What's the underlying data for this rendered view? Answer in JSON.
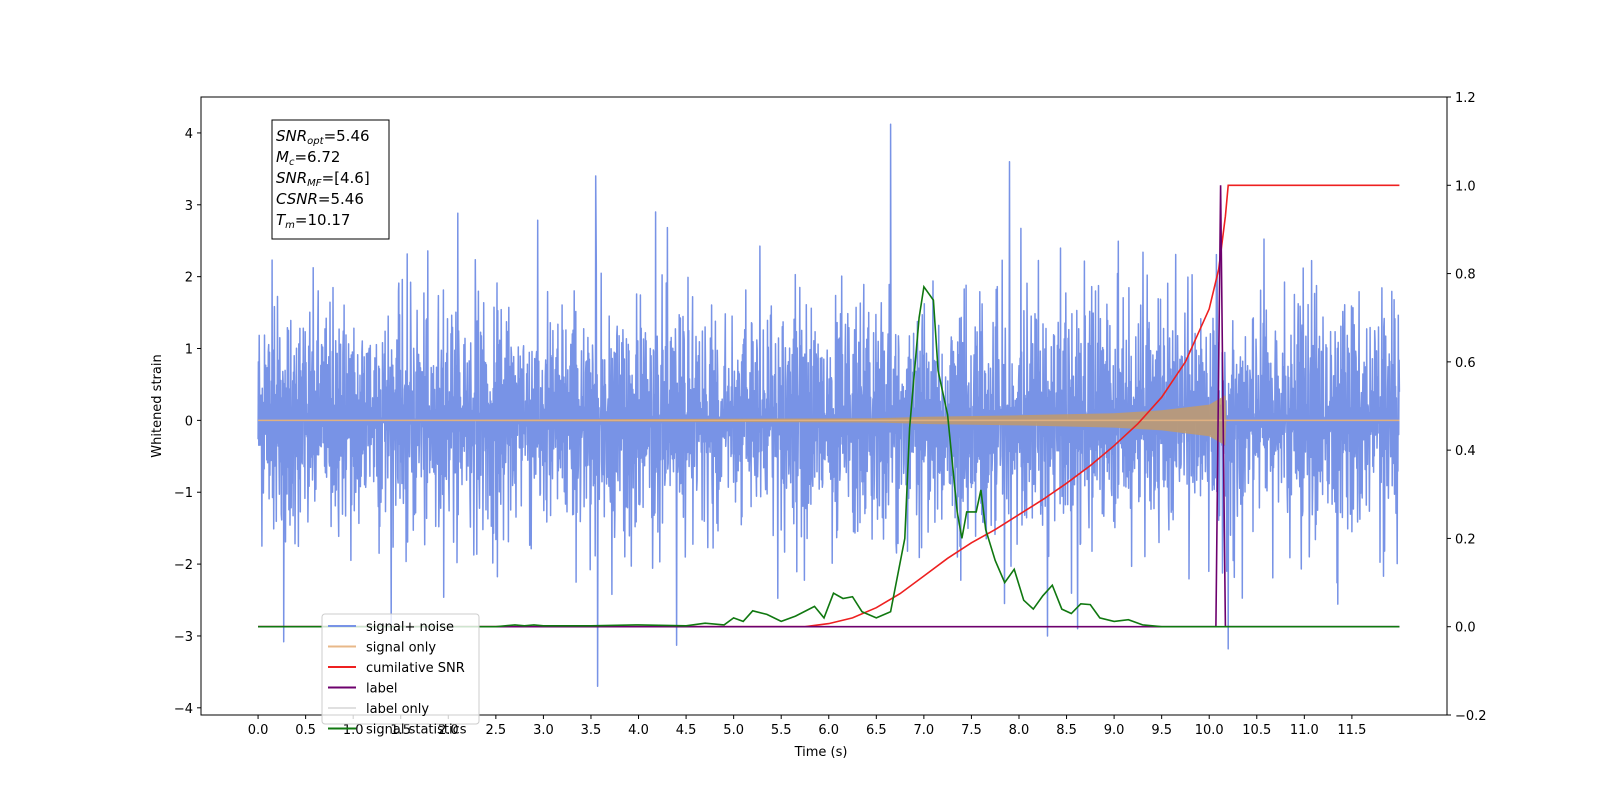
{
  "chart_data": {
    "type": "line",
    "xlabel": "Time (s)",
    "ylabel": "Whitened strain",
    "xlim": [
      -0.6,
      12.5
    ],
    "ylim": [
      -4.1,
      4.5
    ],
    "y2lim": [
      -0.2,
      1.2
    ],
    "x_ticks": [
      "0.0",
      "0.5",
      "1.0",
      "1.5",
      "2.0",
      "2.5",
      "3.0",
      "3.5",
      "4.0",
      "4.5",
      "5.0",
      "5.5",
      "6.0",
      "6.5",
      "7.0",
      "7.5",
      "8.0",
      "8.5",
      "9.0",
      "9.5",
      "10.0",
      "10.5",
      "11.0",
      "11.5"
    ],
    "y_ticks": [
      "4",
      "3",
      "2",
      "1",
      "0",
      "−1",
      "−2",
      "−3",
      "−4"
    ],
    "y2_ticks": [
      "1.2",
      "1.0",
      "0.8",
      "0.6",
      "0.4",
      "0.2",
      "0.0",
      "−0.2"
    ],
    "annotation": {
      "lines": [
        {
          "base": "SNR",
          "sub": "opt",
          "rest": "=5.46"
        },
        {
          "base": "M",
          "sub": "c",
          "rest": "=6.72"
        },
        {
          "base": "SNR",
          "sub": "MF",
          "rest": "=[4.6]"
        },
        {
          "base": "CSNR",
          "sub": "",
          "rest": "=5.46"
        },
        {
          "base": "T",
          "sub": "m",
          "rest": "=10.17"
        }
      ]
    },
    "series": [
      {
        "name": "signal+ noise",
        "color": "#7893e6",
        "axis": "left",
        "x_range": [
          0.0,
          12.0
        ],
        "typical_amplitude": 1.6,
        "spikes": [
          {
            "x": 0.27,
            "y": -3.08
          },
          {
            "x": 3.55,
            "y": 3.4
          },
          {
            "x": 3.57,
            "y": -3.7
          },
          {
            "x": 4.4,
            "y": -3.13
          },
          {
            "x": 6.65,
            "y": 4.12
          },
          {
            "x": 7.9,
            "y": 3.6
          },
          {
            "x": 8.3,
            "y": -3.0
          },
          {
            "x": 10.2,
            "y": -3.18
          }
        ]
      },
      {
        "name": "signal only",
        "color": "#e8b889",
        "axis": "left",
        "envelope": [
          [
            0.0,
            0.0
          ],
          [
            6.5,
            0.03
          ],
          [
            7.0,
            0.05
          ],
          [
            8.0,
            0.07
          ],
          [
            9.0,
            0.1
          ],
          [
            9.5,
            0.14
          ],
          [
            10.0,
            0.22
          ],
          [
            10.17,
            0.35
          ],
          [
            10.18,
            0.0
          ],
          [
            12.0,
            0.0
          ]
        ]
      },
      {
        "name": "cumilative SNR",
        "color": "#ee2020",
        "axis": "right",
        "points": [
          [
            0.0,
            0.0
          ],
          [
            5.5,
            0.0
          ],
          [
            5.75,
            0.0
          ],
          [
            6.0,
            0.007
          ],
          [
            6.25,
            0.02
          ],
          [
            6.5,
            0.043
          ],
          [
            6.75,
            0.075
          ],
          [
            7.0,
            0.115
          ],
          [
            7.25,
            0.155
          ],
          [
            7.5,
            0.19
          ],
          [
            7.75,
            0.22
          ],
          [
            8.0,
            0.254
          ],
          [
            8.25,
            0.288
          ],
          [
            8.5,
            0.325
          ],
          [
            8.75,
            0.365
          ],
          [
            9.0,
            0.41
          ],
          [
            9.25,
            0.46
          ],
          [
            9.5,
            0.52
          ],
          [
            9.75,
            0.6
          ],
          [
            10.0,
            0.72
          ],
          [
            10.1,
            0.81
          ],
          [
            10.17,
            0.93
          ],
          [
            10.2,
            1.0
          ],
          [
            12.0,
            1.0
          ]
        ]
      },
      {
        "name": "label",
        "color": "#6d006d",
        "axis": "right",
        "points": [
          [
            0.0,
            0.0
          ],
          [
            10.07,
            0.0
          ],
          [
            10.12,
            1.0
          ],
          [
            10.17,
            0.0
          ],
          [
            12.0,
            0.0
          ]
        ]
      },
      {
        "name": "label only",
        "color": "#e0e0e0",
        "axis": "right",
        "points": []
      },
      {
        "name": "signal statistics",
        "color": "#107810",
        "axis": "right",
        "points": [
          [
            0.0,
            0.0
          ],
          [
            2.5,
            0.0
          ],
          [
            2.6,
            0.002
          ],
          [
            2.7,
            0.004
          ],
          [
            2.8,
            0.002
          ],
          [
            2.9,
            0.004
          ],
          [
            3.0,
            0.002
          ],
          [
            3.5,
            0.002
          ],
          [
            4.0,
            0.004
          ],
          [
            4.5,
            0.002
          ],
          [
            4.7,
            0.008
          ],
          [
            4.9,
            0.004
          ],
          [
            5.0,
            0.02
          ],
          [
            5.1,
            0.012
          ],
          [
            5.2,
            0.036
          ],
          [
            5.35,
            0.028
          ],
          [
            5.5,
            0.012
          ],
          [
            5.65,
            0.024
          ],
          [
            5.85,
            0.046
          ],
          [
            5.95,
            0.02
          ],
          [
            6.05,
            0.076
          ],
          [
            6.15,
            0.064
          ],
          [
            6.25,
            0.068
          ],
          [
            6.35,
            0.034
          ],
          [
            6.5,
            0.02
          ],
          [
            6.65,
            0.034
          ],
          [
            6.8,
            0.2
          ],
          [
            6.85,
            0.45
          ],
          [
            6.95,
            0.7
          ],
          [
            7.0,
            0.77
          ],
          [
            7.1,
            0.74
          ],
          [
            7.15,
            0.58
          ],
          [
            7.25,
            0.48
          ],
          [
            7.35,
            0.26
          ],
          [
            7.4,
            0.2
          ],
          [
            7.45,
            0.26
          ],
          [
            7.55,
            0.26
          ],
          [
            7.6,
            0.31
          ],
          [
            7.65,
            0.22
          ],
          [
            7.75,
            0.15
          ],
          [
            7.85,
            0.1
          ],
          [
            7.95,
            0.13
          ],
          [
            8.05,
            0.06
          ],
          [
            8.15,
            0.04
          ],
          [
            8.25,
            0.07
          ],
          [
            8.35,
            0.094
          ],
          [
            8.45,
            0.04
          ],
          [
            8.55,
            0.03
          ],
          [
            8.65,
            0.052
          ],
          [
            8.75,
            0.05
          ],
          [
            8.85,
            0.02
          ],
          [
            9.0,
            0.012
          ],
          [
            9.15,
            0.016
          ],
          [
            9.3,
            0.004
          ],
          [
            9.5,
            0.0
          ],
          [
            12.0,
            0.0
          ]
        ]
      }
    ],
    "legend": {
      "placement": "lower-left"
    }
  }
}
